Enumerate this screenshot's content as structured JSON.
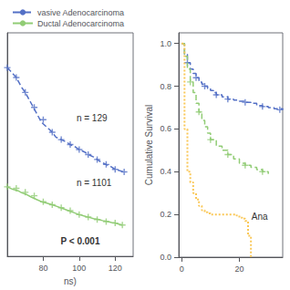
{
  "chart_data": [
    {
      "type": "line",
      "xlabel": "ns)",
      "xlim": [
        60,
        130
      ],
      "xticks": [
        80,
        100,
        120
      ],
      "ylim": [
        0.1,
        0.55
      ],
      "tick_labels": "x",
      "grid": false,
      "legend": "upper left",
      "series": [
        {
          "name": "vasive Adenocarcinoma",
          "line_style": "dashed",
          "x": [
            60,
            65,
            68,
            70,
            73,
            76,
            79,
            82,
            85,
            87,
            90,
            93,
            95,
            98,
            100,
            103,
            105,
            108,
            110,
            112,
            115,
            118,
            120,
            125
          ],
          "values": [
            0.48,
            0.46,
            0.44,
            0.43,
            0.41,
            0.39,
            0.37,
            0.36,
            0.35,
            0.34,
            0.335,
            0.33,
            0.325,
            0.32,
            0.315,
            0.31,
            0.305,
            0.3,
            0.295,
            0.29,
            0.285,
            0.28,
            0.275,
            0.27
          ],
          "censored": {
            "marker": "plus",
            "x": [
              60,
              65,
              70,
              75,
              80,
              85,
              90,
              95,
              100,
              105,
              110,
              115,
              120,
              125
            ],
            "values": [
              0.48,
              0.46,
              0.43,
              0.4,
              0.375,
              0.35,
              0.335,
              0.325,
              0.315,
              0.305,
              0.295,
              0.285,
              0.275,
              0.27
            ]
          }
        },
        {
          "name": "Ductal Adenocarcinoma",
          "line_style": "solid",
          "x": [
            60,
            63,
            66,
            68,
            71,
            73,
            76,
            79,
            82,
            85,
            88,
            91,
            94,
            97,
            100,
            103,
            106,
            108,
            111,
            113,
            116,
            118,
            120,
            122,
            124
          ],
          "values": [
            0.24,
            0.235,
            0.232,
            0.228,
            0.224,
            0.22,
            0.215,
            0.21,
            0.207,
            0.204,
            0.2,
            0.196,
            0.192,
            0.188,
            0.184,
            0.181,
            0.178,
            0.176,
            0.174,
            0.172,
            0.17,
            0.168,
            0.167,
            0.165,
            0.163
          ],
          "censored": {
            "marker": "plus",
            "x": [
              60,
              65,
              70,
              75,
              80,
              85,
              90,
              95,
              100,
              105,
              110,
              115,
              120,
              124
            ],
            "values": [
              0.24,
              0.237,
              0.229,
              0.222,
              0.21,
              0.204,
              0.198,
              0.192,
              0.184,
              0.179,
              0.174,
              0.17,
              0.167,
              0.163
            ]
          }
        }
      ],
      "annotations": [
        "n = 129",
        "n = 1101",
        "P < 0.001"
      ]
    },
    {
      "type": "step",
      "ylabel": "Cumulative Survival",
      "xlim": [
        -1,
        35
      ],
      "xticks": [
        0,
        20
      ],
      "ylim": [
        0.0,
        1.05
      ],
      "yticks": [
        {
          "value": 0.0,
          "label": "0.0"
        },
        0.2,
        0.4,
        0.6,
        0.8,
        {
          "value": 1.0,
          "label": "1.0"
        }
      ],
      "grid": false,
      "series": [
        {
          "line_style": "dashed",
          "x": [
            0,
            1,
            2,
            3,
            4,
            5,
            6,
            7,
            8,
            9,
            10,
            11,
            12,
            14,
            16,
            18,
            20,
            22,
            24,
            26,
            28,
            30,
            32,
            35
          ],
          "values": [
            1.0,
            0.95,
            0.91,
            0.88,
            0.86,
            0.84,
            0.82,
            0.81,
            0.8,
            0.79,
            0.78,
            0.77,
            0.76,
            0.75,
            0.74,
            0.735,
            0.73,
            0.725,
            0.72,
            0.71,
            0.705,
            0.7,
            0.695,
            0.69
          ],
          "censored": {
            "marker": "plus",
            "x": [
              2,
              5,
              8,
              12,
              16,
              22,
              28,
              34
            ],
            "values": [
              0.91,
              0.84,
              0.8,
              0.76,
              0.74,
              0.725,
              0.705,
              0.69
            ]
          }
        },
        {
          "line_style": "dashed",
          "x": [
            0,
            1,
            2,
            3,
            4,
            5,
            6,
            7,
            8,
            9,
            10,
            12,
            14,
            16,
            18,
            20,
            22,
            24,
            26,
            28,
            30
          ],
          "values": [
            1.0,
            0.94,
            0.88,
            0.82,
            0.77,
            0.72,
            0.68,
            0.64,
            0.61,
            0.58,
            0.55,
            0.52,
            0.5,
            0.48,
            0.46,
            0.44,
            0.43,
            0.42,
            0.41,
            0.4,
            0.39
          ],
          "censored": {
            "marker": "plus",
            "x": [
              3,
              6,
              10,
              16,
              22,
              28
            ],
            "values": [
              0.82,
              0.68,
              0.55,
              0.48,
              0.43,
              0.4
            ]
          }
        },
        {
          "line_style": "dotted",
          "x": [
            0,
            1,
            2,
            3,
            4,
            5,
            6,
            7,
            8,
            9,
            10,
            11,
            12,
            14,
            16,
            18,
            19,
            20,
            21,
            22,
            23,
            24
          ],
          "values": [
            1.0,
            0.6,
            0.4,
            0.35,
            0.3,
            0.27,
            0.24,
            0.22,
            0.21,
            0.205,
            0.2,
            0.2,
            0.2,
            0.2,
            0.2,
            0.2,
            0.195,
            0.185,
            0.18,
            0.17,
            0.1,
            0.0
          ]
        }
      ],
      "annotations": [
        "Ana"
      ]
    }
  ]
}
